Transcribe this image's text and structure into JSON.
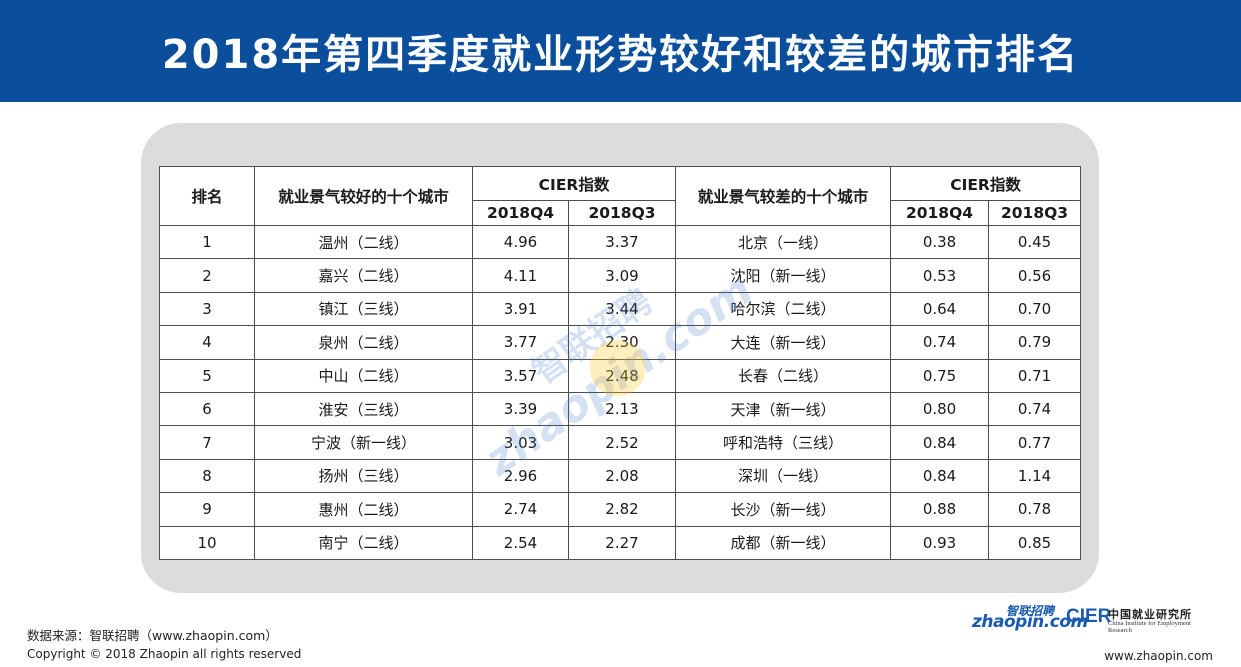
{
  "title": "2018年第四季度就业形势较好和较差的城市排名",
  "table": {
    "header": {
      "rank": "排名",
      "good_cities": "就业景气较好的十个城市",
      "cier_index_good": "CIER指数",
      "bad_cities": "就业景气较差的十个城市",
      "cier_index_bad": "CIER指数",
      "q4_good": "2018Q4",
      "q3_good": "2018Q3",
      "q4_bad": "2018Q4",
      "q3_bad": "2018Q3"
    },
    "rows": [
      {
        "rank": "1",
        "good_city": "温州（二线）",
        "good_q4": "4.96",
        "good_q3": "3.37",
        "bad_city": "北京（一线）",
        "bad_q4": "0.38",
        "bad_q3": "0.45"
      },
      {
        "rank": "2",
        "good_city": "嘉兴（二线）",
        "good_q4": "4.11",
        "good_q3": "3.09",
        "bad_city": "沈阳（新一线）",
        "bad_q4": "0.53",
        "bad_q3": "0.56"
      },
      {
        "rank": "3",
        "good_city": "镇江（三线）",
        "good_q4": "3.91",
        "good_q3": "3.44",
        "bad_city": "哈尔滨（二线）",
        "bad_q4": "0.64",
        "bad_q3": "0.70"
      },
      {
        "rank": "4",
        "good_city": "泉州（二线）",
        "good_q4": "3.77",
        "good_q3": "2.30",
        "bad_city": "大连（新一线）",
        "bad_q4": "0.74",
        "bad_q3": "0.79"
      },
      {
        "rank": "5",
        "good_city": "中山（二线）",
        "good_q4": "3.57",
        "good_q3": "2.48",
        "bad_city": "长春（二线）",
        "bad_q4": "0.75",
        "bad_q3": "0.71"
      },
      {
        "rank": "6",
        "good_city": "淮安（三线）",
        "good_q4": "3.39",
        "good_q3": "2.13",
        "bad_city": "天津（新一线）",
        "bad_q4": "0.80",
        "bad_q3": "0.74"
      },
      {
        "rank": "7",
        "good_city": "宁波（新一线）",
        "good_q4": "3.03",
        "good_q3": "2.52",
        "bad_city": "呼和浩特（三线）",
        "bad_q4": "0.84",
        "bad_q3": "0.77"
      },
      {
        "rank": "8",
        "good_city": "扬州（三线）",
        "good_q4": "2.96",
        "good_q3": "2.08",
        "bad_city": "深圳（一线）",
        "bad_q4": "0.84",
        "bad_q3": "1.14"
      },
      {
        "rank": "9",
        "good_city": "惠州（二线）",
        "good_q4": "2.74",
        "good_q3": "2.82",
        "bad_city": "长沙（新一线）",
        "bad_q4": "0.88",
        "bad_q3": "0.78"
      },
      {
        "rank": "10",
        "good_city": "南宁（二线）",
        "good_q4": "2.54",
        "good_q3": "2.27",
        "bad_city": "成都（新一线）",
        "bad_q4": "0.93",
        "bad_q3": "0.85"
      }
    ]
  },
  "watermark": {
    "cn": "智联招聘",
    "en": "zhaopin.com"
  },
  "footer": {
    "source": "数据来源：智联招聘（www.zhaopin.com）",
    "copyright": "Copyright © 2018 Zhaopin all rights reserved",
    "url": "www.zhaopin.com"
  },
  "logos": {
    "zhaopin_cn": "智联招聘",
    "zhaopin_en": "zhaopin.com",
    "cier_en": "CIER",
    "cier_cn": "中国就业研究所",
    "cier_sub": "China Institute for Employment Research"
  },
  "colors": {
    "banner": "#0b4f9c",
    "panel": "#dcdcdc",
    "logo_blue": "#1a5bb0",
    "logo_yellow": "#f5b400"
  }
}
